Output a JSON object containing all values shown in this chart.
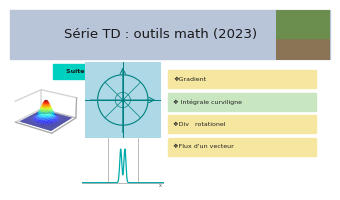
{
  "title": "Série TD : outils math (2023)",
  "subtitle": "Suite   Ex 3 et 4",
  "subtitle_bg": "#00D0C0",
  "title_bg": "#B8C4D8",
  "main_bg": "#FFFFFF",
  "bullet_items": [
    "❖Gradient",
    "❖ Intégrale curviligne",
    "❖Div   rotationel",
    "❖Flux d'un vecteur"
  ],
  "bullet_colors": [
    "#F5E6A0",
    "#C8E6C0",
    "#F5E6A0",
    "#F5E6A0"
  ],
  "plot_bg": "#ADD8E6",
  "title_fontsize": 9.5,
  "subtitle_fontsize": 4.5,
  "bullet_fontsize": 4.5
}
